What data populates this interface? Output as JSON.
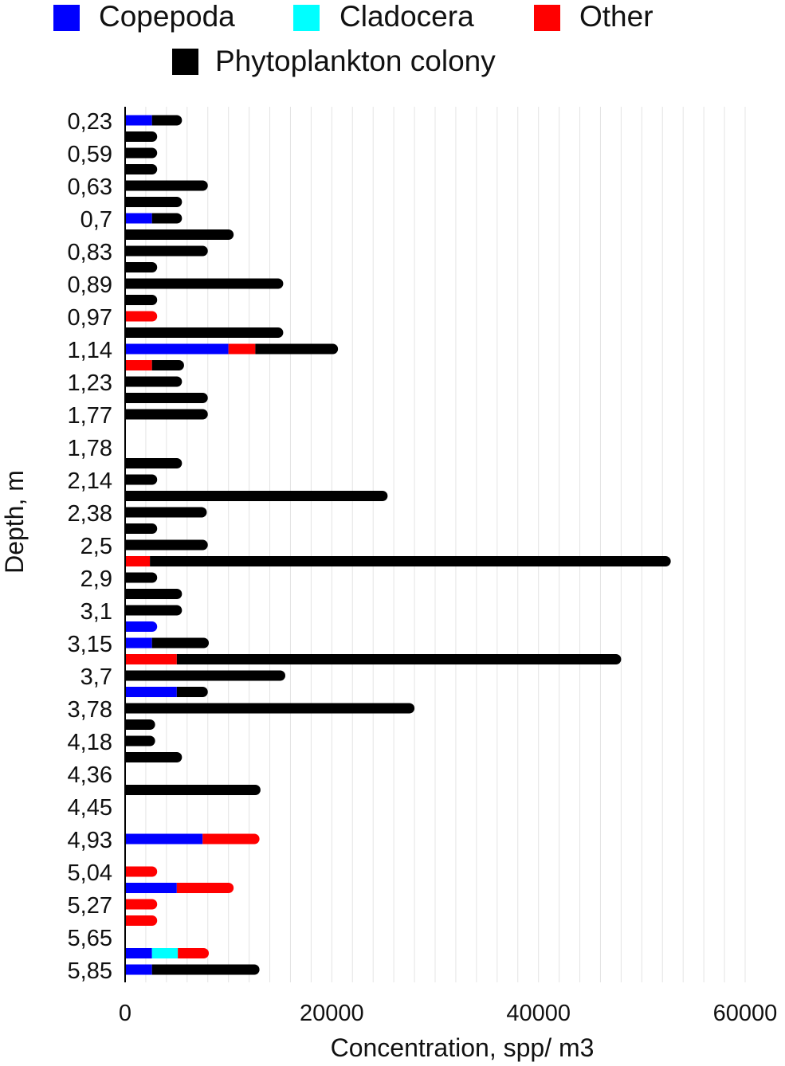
{
  "chart_data": {
    "type": "bar",
    "orientation": "horizontal",
    "stacked": true,
    "ylabel": "Depth, m",
    "xlabel": "Concentration, spp/ m3",
    "xlim": [
      0,
      60000
    ],
    "xticks": [
      0,
      20000,
      40000,
      60000
    ],
    "grid": "vertical",
    "legend": {
      "position": "top",
      "entries": [
        {
          "name": "Copepoda",
          "color": "#0000ff"
        },
        {
          "name": "Cladocera",
          "color": "#00ffff"
        },
        {
          "name": "Other",
          "color": "#ff0000"
        },
        {
          "name": "Phytoplankton colony",
          "color": "#000000"
        }
      ]
    },
    "depth_labels": [
      "0,23",
      "0,59",
      "0,63",
      "0,7",
      "0,83",
      "0,89",
      "0,97",
      "1,14",
      "1,23",
      "1,77",
      "1,78",
      "2,14",
      "2,38",
      "2,5",
      "2,9",
      "3,1",
      "3,15",
      "3,7",
      "3,78",
      "4,18",
      "4,36",
      "4,45",
      "4,93",
      "5,04",
      "5,27",
      "5,65",
      "5,85"
    ],
    "series": [
      {
        "name": "Copepoda",
        "color": "#0000ff",
        "values": [
          2600,
          0,
          0,
          0,
          0,
          0,
          2600,
          0,
          0,
          0,
          0,
          0,
          0,
          0,
          10000,
          0,
          0,
          0,
          0,
          0,
          0,
          0,
          0,
          0,
          0,
          0,
          0,
          0,
          0,
          0,
          0,
          2600,
          2600,
          0,
          0,
          5000,
          0,
          0,
          0,
          0,
          0,
          0,
          0,
          0,
          7500,
          0,
          0,
          5000,
          0,
          0,
          0,
          2600,
          2600
        ]
      },
      {
        "name": "Cladocera",
        "color": "#00ffff",
        "values": [
          0,
          0,
          0,
          0,
          0,
          0,
          0,
          0,
          0,
          0,
          0,
          0,
          0,
          0,
          0,
          0,
          0,
          0,
          0,
          0,
          0,
          0,
          0,
          0,
          0,
          0,
          0,
          0,
          0,
          0,
          0,
          0,
          0,
          0,
          0,
          0,
          0,
          0,
          0,
          0,
          0,
          0,
          0,
          0,
          0,
          0,
          0,
          0,
          0,
          0,
          0,
          2500,
          0
        ]
      },
      {
        "name": "Other",
        "color": "#ff0000",
        "values": [
          0,
          0,
          0,
          0,
          0,
          0,
          0,
          0,
          0,
          0,
          0,
          0,
          2600,
          0,
          2600,
          2600,
          0,
          0,
          0,
          0,
          0,
          0,
          0,
          0,
          0,
          0,
          0,
          2400,
          0,
          0,
          0,
          0,
          0,
          5000,
          0,
          0,
          0,
          0,
          0,
          0,
          0,
          0,
          0,
          0,
          5000,
          0,
          2600,
          5000,
          2600,
          2600,
          0,
          2500,
          0
        ]
      },
      {
        "name": "Phytoplankton colony",
        "color": "#000000",
        "values": [
          2400,
          2600,
          2600,
          2600,
          7500,
          5000,
          2400,
          10000,
          7500,
          2600,
          14800,
          2600,
          0,
          14800,
          7500,
          2600,
          5000,
          7500,
          7500,
          0,
          0,
          5000,
          2600,
          24900,
          7400,
          2600,
          7500,
          49900,
          2600,
          5000,
          5000,
          0,
          5000,
          42500,
          15000,
          2500,
          27500,
          2400,
          2400,
          5000,
          0,
          12600,
          0,
          0,
          0,
          0,
          0,
          0,
          0,
          0,
          0,
          0,
          9900
        ]
      }
    ]
  }
}
